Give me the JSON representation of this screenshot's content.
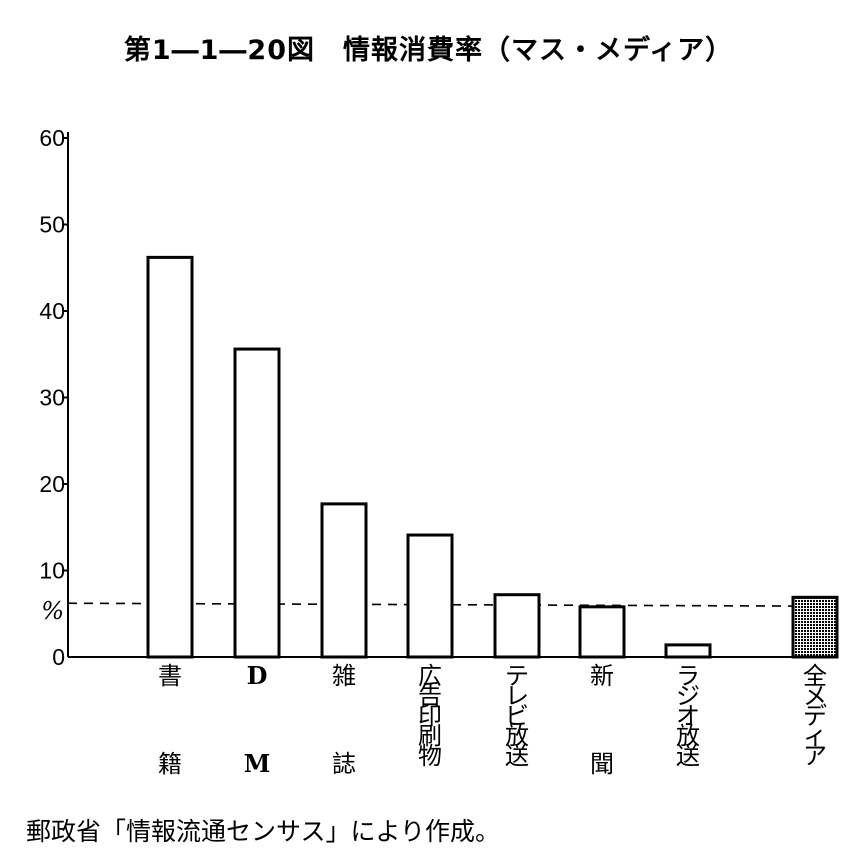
{
  "title": "第1―1―20図　情報消費率（マス・メディア）",
  "source": "郵政省「情報流通センサス」により作成。",
  "chart_data": {
    "type": "bar",
    "y_unit": "%",
    "ylim": [
      0,
      60
    ],
    "yticks": [
      "0",
      "10",
      "20",
      "30",
      "40",
      "50",
      "60"
    ],
    "categories": [
      {
        "label_top": "書",
        "label_bottom": "籍"
      },
      {
        "label_top": "D",
        "label_bottom": "M"
      },
      {
        "label_top": "雑",
        "label_bottom": "誌"
      },
      {
        "label_top": "広告印刷物",
        "label_bottom": ""
      },
      {
        "label_top": "テレビ放送",
        "label_bottom": ""
      },
      {
        "label_top": "新",
        "label_bottom": "聞"
      },
      {
        "label_top": "ラジオ放送",
        "label_bottom": ""
      },
      {
        "label_top": "全メディア",
        "label_bottom": ""
      }
    ],
    "values": [
      46.2,
      35.6,
      17.7,
      14.1,
      7.2,
      5.8,
      1.4,
      6.9
    ],
    "highlight": [
      false,
      false,
      false,
      false,
      false,
      false,
      false,
      true
    ],
    "reference_line": 6.1,
    "grid": false
  }
}
